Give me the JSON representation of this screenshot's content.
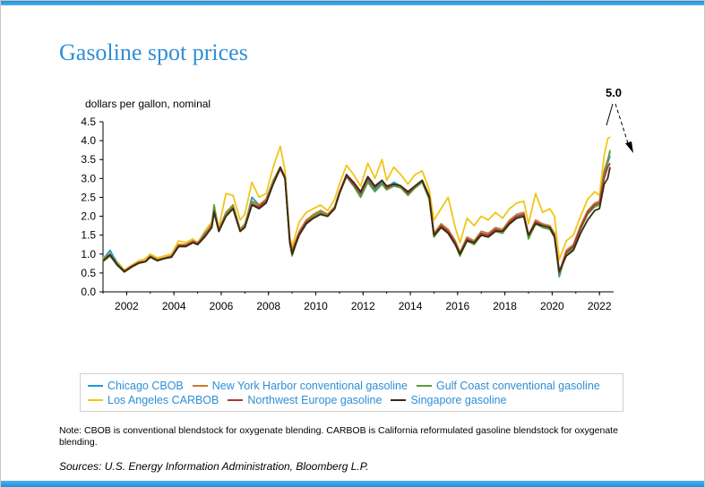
{
  "title": "Gasoline spot prices",
  "note": "Note: CBOB is conventional blendstock for oxygenate blending. CARBOB is California reformulated gasoline blendstock for oxygenate blending.",
  "source": "Sources: U.S. Energy Information Administration, Bloomberg L.P.",
  "colors": {
    "accent": "#2e8fd6",
    "chicago": "#1f9ad6",
    "nyh": "#c87a2e",
    "gulf": "#5a9e3a",
    "la": "#f2c518",
    "nwe": "#a33a3a",
    "sing": "#3a2a14"
  },
  "chart_data": {
    "type": "line",
    "title": "Gasoline spot prices",
    "ylabel": "dollars per gallon, nominal",
    "xlabel": "",
    "ylim": [
      0,
      4.5
    ],
    "xlim": [
      2001,
      2022.6
    ],
    "yticks": [
      "0.0",
      "0.5",
      "1.0",
      "1.5",
      "2.0",
      "2.5",
      "3.0",
      "3.5",
      "4.0",
      "4.5"
    ],
    "xticks": [
      "2002",
      "2004",
      "2006",
      "2008",
      "2010",
      "2012",
      "2014",
      "2016",
      "2018",
      "2020",
      "2022"
    ],
    "annotation": "5.0",
    "legend_placement": "bottom",
    "x": [
      2001.0,
      2001.3,
      2001.6,
      2001.9,
      2002.2,
      2002.5,
      2002.8,
      2003.0,
      2003.3,
      2003.6,
      2003.9,
      2004.2,
      2004.5,
      2004.8,
      2005.0,
      2005.3,
      2005.6,
      2005.7,
      2005.9,
      2006.2,
      2006.5,
      2006.8,
      2007.0,
      2007.3,
      2007.6,
      2007.9,
      2008.2,
      2008.5,
      2008.7,
      2008.9,
      2009.0,
      2009.3,
      2009.6,
      2009.9,
      2010.2,
      2010.5,
      2010.8,
      2011.0,
      2011.3,
      2011.6,
      2011.9,
      2012.2,
      2012.5,
      2012.8,
      2013.0,
      2013.3,
      2013.6,
      2013.9,
      2014.2,
      2014.5,
      2014.8,
      2015.0,
      2015.3,
      2015.6,
      2015.9,
      2016.1,
      2016.4,
      2016.7,
      2017.0,
      2017.3,
      2017.6,
      2017.9,
      2018.2,
      2018.5,
      2018.8,
      2019.0,
      2019.3,
      2019.6,
      2019.9,
      2020.1,
      2020.3,
      2020.6,
      2020.9,
      2021.2,
      2021.5,
      2021.8,
      2022.0,
      2022.2,
      2022.35,
      2022.45
    ],
    "series": [
      {
        "name": "Chicago CBOB",
        "values": [
          0.85,
          1.1,
          0.75,
          0.55,
          0.65,
          0.78,
          0.82,
          0.95,
          0.85,
          0.9,
          0.95,
          1.25,
          1.2,
          1.35,
          1.25,
          1.55,
          1.75,
          2.2,
          1.6,
          2.05,
          2.3,
          1.65,
          1.75,
          2.5,
          2.3,
          2.45,
          2.95,
          3.25,
          3.05,
          1.3,
          1.05,
          1.55,
          1.9,
          2.0,
          2.15,
          2.05,
          2.25,
          2.65,
          3.05,
          2.8,
          2.55,
          2.95,
          2.7,
          2.9,
          2.75,
          2.9,
          2.8,
          2.6,
          2.75,
          2.9,
          2.5,
          1.55,
          1.75,
          1.6,
          1.3,
          0.95,
          1.4,
          1.3,
          1.55,
          1.5,
          1.65,
          1.6,
          1.85,
          2.0,
          2.05,
          1.45,
          1.85,
          1.75,
          1.7,
          1.5,
          0.4,
          1.05,
          1.2,
          1.7,
          2.1,
          2.3,
          2.35,
          3.15,
          3.4,
          3.6
        ]
      },
      {
        "name": "New York Harbor conventional gasoline",
        "values": [
          0.85,
          1.0,
          0.72,
          0.55,
          0.68,
          0.78,
          0.82,
          0.95,
          0.85,
          0.9,
          0.95,
          1.25,
          1.25,
          1.35,
          1.3,
          1.5,
          1.8,
          2.25,
          1.65,
          2.1,
          2.3,
          1.65,
          1.8,
          2.4,
          2.3,
          2.45,
          2.95,
          3.3,
          3.05,
          1.4,
          1.1,
          1.6,
          1.9,
          2.05,
          2.15,
          2.05,
          2.25,
          2.65,
          3.1,
          2.85,
          2.6,
          3.0,
          2.75,
          2.95,
          2.75,
          2.85,
          2.8,
          2.65,
          2.8,
          2.95,
          2.55,
          1.55,
          1.8,
          1.65,
          1.35,
          1.05,
          1.45,
          1.35,
          1.6,
          1.55,
          1.7,
          1.65,
          1.9,
          2.05,
          2.1,
          1.5,
          1.9,
          1.8,
          1.75,
          1.55,
          0.5,
          1.1,
          1.25,
          1.75,
          2.15,
          2.35,
          2.4,
          3.2,
          3.5,
          3.7
        ]
      },
      {
        "name": "Gulf Coast conventional gasoline",
        "values": [
          0.8,
          0.95,
          0.7,
          0.52,
          0.65,
          0.75,
          0.8,
          0.92,
          0.82,
          0.88,
          0.92,
          1.2,
          1.2,
          1.3,
          1.25,
          1.45,
          1.75,
          2.3,
          1.6,
          2.05,
          2.25,
          1.6,
          1.75,
          2.35,
          2.25,
          2.4,
          2.9,
          3.3,
          3.0,
          1.3,
          0.95,
          1.55,
          1.85,
          2.0,
          2.1,
          2.0,
          2.2,
          2.6,
          3.05,
          2.8,
          2.5,
          2.9,
          2.65,
          2.85,
          2.7,
          2.8,
          2.75,
          2.55,
          2.75,
          2.9,
          2.45,
          1.45,
          1.7,
          1.55,
          1.25,
          0.95,
          1.35,
          1.25,
          1.5,
          1.45,
          1.6,
          1.55,
          1.8,
          1.95,
          2.0,
          1.4,
          1.8,
          1.7,
          1.65,
          1.45,
          0.45,
          1.0,
          1.15,
          1.65,
          2.05,
          2.25,
          2.3,
          3.1,
          3.45,
          3.75
        ]
      },
      {
        "name": "Los Angeles CARBOB",
        "values": [
          0.9,
          1.05,
          0.8,
          0.58,
          0.7,
          0.82,
          0.88,
          1.0,
          0.9,
          0.95,
          1.0,
          1.35,
          1.3,
          1.4,
          1.3,
          1.6,
          1.85,
          2.2,
          1.7,
          2.6,
          2.55,
          1.9,
          2.05,
          2.9,
          2.5,
          2.6,
          3.3,
          3.85,
          3.2,
          1.45,
          1.2,
          1.85,
          2.1,
          2.2,
          2.3,
          2.15,
          2.45,
          2.85,
          3.35,
          3.1,
          2.8,
          3.4,
          3.0,
          3.5,
          2.95,
          3.3,
          3.1,
          2.85,
          3.1,
          3.2,
          2.7,
          1.9,
          2.2,
          2.5,
          1.7,
          1.3,
          1.95,
          1.75,
          2.0,
          1.9,
          2.1,
          1.95,
          2.2,
          2.35,
          2.4,
          1.8,
          2.6,
          2.1,
          2.2,
          2.0,
          0.85,
          1.35,
          1.5,
          2.0,
          2.45,
          2.65,
          2.55,
          3.6,
          4.05,
          4.1
        ]
      },
      {
        "name": "Northwest Europe gasoline",
        "values": [
          0.82,
          0.98,
          0.72,
          0.53,
          0.66,
          0.76,
          0.8,
          0.93,
          0.83,
          0.88,
          0.93,
          1.22,
          1.22,
          1.32,
          1.27,
          1.48,
          1.72,
          2.15,
          1.6,
          2.0,
          2.2,
          1.6,
          1.72,
          2.3,
          2.25,
          2.4,
          2.85,
          3.25,
          3.0,
          1.35,
          1.05,
          1.55,
          1.85,
          1.95,
          2.05,
          2.0,
          2.2,
          2.6,
          3.05,
          2.85,
          2.6,
          3.0,
          2.75,
          2.95,
          2.75,
          2.85,
          2.8,
          2.6,
          2.8,
          2.95,
          2.5,
          1.5,
          1.75,
          1.6,
          1.3,
          1.0,
          1.4,
          1.3,
          1.55,
          1.5,
          1.65,
          1.6,
          1.85,
          2.0,
          2.05,
          1.5,
          1.85,
          1.75,
          1.7,
          1.5,
          0.5,
          1.05,
          1.2,
          1.7,
          2.1,
          2.3,
          2.35,
          3.0,
          3.3,
          3.4
        ]
      },
      {
        "name": "Singapore gasoline",
        "values": [
          0.82,
          0.98,
          0.72,
          0.54,
          0.66,
          0.76,
          0.8,
          0.92,
          0.83,
          0.88,
          0.92,
          1.2,
          1.2,
          1.3,
          1.25,
          1.45,
          1.7,
          2.1,
          1.6,
          2.0,
          2.2,
          1.6,
          1.7,
          2.3,
          2.2,
          2.35,
          2.85,
          3.3,
          3.0,
          1.3,
          1.0,
          1.5,
          1.8,
          1.95,
          2.05,
          2.0,
          2.2,
          2.6,
          3.1,
          2.9,
          2.65,
          3.05,
          2.8,
          2.95,
          2.8,
          2.85,
          2.8,
          2.65,
          2.8,
          2.95,
          2.5,
          1.5,
          1.7,
          1.55,
          1.25,
          1.0,
          1.35,
          1.3,
          1.5,
          1.45,
          1.6,
          1.6,
          1.8,
          1.95,
          2.0,
          1.5,
          1.8,
          1.75,
          1.7,
          1.45,
          0.55,
          0.95,
          1.1,
          1.55,
          1.9,
          2.15,
          2.2,
          2.85,
          3.0,
          3.3
        ]
      }
    ]
  }
}
